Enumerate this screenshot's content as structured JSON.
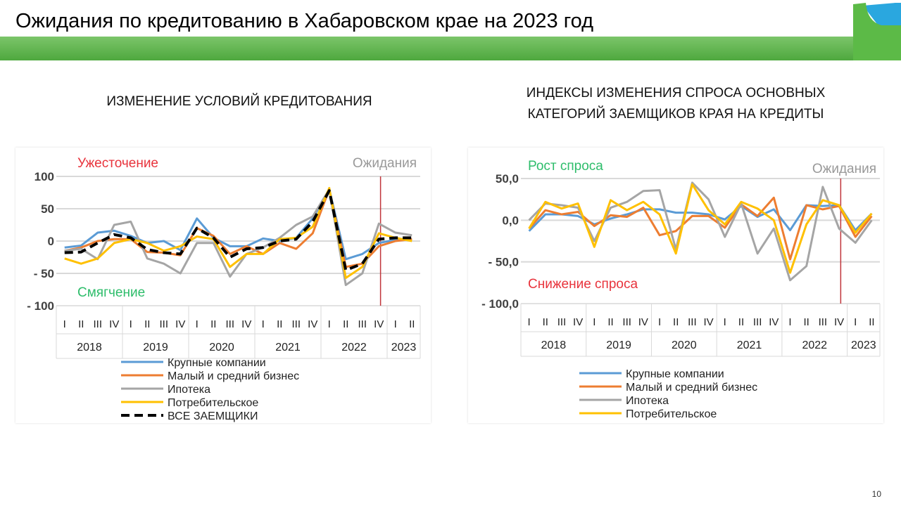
{
  "header": {
    "title": "Ожидания по кредитованию в Хабаровском крае на 2023 год",
    "page": "10"
  },
  "colors": {
    "blue": "#5b9bd5",
    "orange": "#ed7d31",
    "gray": "#a5a5a5",
    "yellow": "#ffc000",
    "black": "#000000",
    "red": "#e8333c",
    "green": "#2ebd6b",
    "band": "#55ad45"
  },
  "chart_data": [
    {
      "type": "line",
      "title": "ИЗМЕНЕНИЕ УСЛОВИЙ КРЕДИТОВАНИЯ",
      "ylim": [
        -100,
        100
      ],
      "yticks": [
        "100",
        "50",
        "0",
        "- 50",
        "- 100"
      ],
      "ytick_values": [
        100,
        50,
        0,
        -50,
        -100
      ],
      "annot_top": "Ужесточение",
      "annot_bottom": "Смягчение",
      "expect": "Ожидания",
      "quarters": [
        "I",
        "II",
        "III",
        "IV",
        "I",
        "II",
        "III",
        "IV",
        "I",
        "II",
        "III",
        "IV",
        "I",
        "II",
        "III",
        "IV",
        "I",
        "II",
        "III",
        "IV",
        "I",
        "II"
      ],
      "years": [
        "2018",
        "2019",
        "2020",
        "2021",
        "2022",
        "2023"
      ],
      "series": [
        {
          "name": "Крупные компании",
          "color": "#5b9bd5",
          "dash": false,
          "values": [
            -10,
            -7,
            13,
            16,
            8,
            -3,
            0,
            -14,
            35,
            5,
            -8,
            -8,
            4,
            0,
            5,
            35,
            80,
            -28,
            -20,
            -3,
            2,
            3
          ]
        },
        {
          "name": "Малый и средний бизнес",
          "color": "#ed7d31",
          "dash": false,
          "values": [
            -15,
            -10,
            0,
            3,
            3,
            -17,
            -18,
            -22,
            20,
            8,
            -20,
            -8,
            -20,
            -3,
            -12,
            12,
            80,
            -40,
            -35,
            -8,
            0,
            3
          ]
        },
        {
          "name": "Ипотека",
          "color": "#a5a5a5",
          "dash": false,
          "values": [
            -15,
            -12,
            -28,
            25,
            30,
            -27,
            -35,
            -50,
            -3,
            -3,
            -55,
            -20,
            -10,
            5,
            25,
            38,
            80,
            -68,
            -50,
            27,
            13,
            9
          ]
        },
        {
          "name": "Потребительское",
          "color": "#ffc000",
          "dash": false,
          "values": [
            -27,
            -35,
            -27,
            -3,
            3,
            -3,
            -15,
            -8,
            7,
            3,
            -40,
            -20,
            -20,
            3,
            5,
            22,
            82,
            -57,
            -40,
            12,
            5,
            0
          ]
        },
        {
          "name": "ВСЕ ЗАЕМЩИКИ",
          "color": "#000000",
          "dash": true,
          "values": [
            -18,
            -17,
            -3,
            10,
            5,
            -13,
            -18,
            -20,
            20,
            5,
            -25,
            -12,
            -10,
            0,
            3,
            30,
            78,
            -45,
            -35,
            3,
            5,
            5
          ]
        }
      ]
    },
    {
      "type": "line",
      "title": "ИНДЕКСЫ ИЗМЕНЕНИЯ СПРОСА ОСНОВНЫХ КАТЕГОРИЙ ЗАЕМЩИКОВ КРАЯ НА КРЕДИТЫ",
      "title_lines": [
        "ИНДЕКСЫ ИЗМЕНЕНИЯ СПРОСА ОСНОВНЫХ",
        "КАТЕГОРИЙ ЗАЕМЩИКОВ КРАЯ НА КРЕДИТЫ"
      ],
      "ylim": [
        -100,
        50
      ],
      "yticks": [
        "50,0",
        "0,0",
        "- 50,0",
        "- 100,0"
      ],
      "ytick_values": [
        50,
        0,
        -50,
        -100
      ],
      "annot_top": "Рост спроса",
      "annot_bottom": "Снижение спроса",
      "expect": "Ожидания",
      "quarters": [
        "I",
        "II",
        "III",
        "IV",
        "I",
        "II",
        "III",
        "IV",
        "I",
        "II",
        "III",
        "IV",
        "I",
        "II",
        "III",
        "IV",
        "I",
        "II",
        "III",
        "IV",
        "I",
        "II"
      ],
      "years": [
        "2018",
        "2019",
        "2020",
        "2021",
        "2022",
        "2023"
      ],
      "series": [
        {
          "name": "Крупные компании",
          "color": "#5b9bd5",
          "dash": false,
          "values": [
            -13,
            7,
            7,
            5,
            -5,
            2,
            7,
            13,
            13,
            9,
            9,
            7,
            1,
            17,
            4,
            13,
            -12,
            18,
            17,
            18,
            -12,
            8
          ]
        },
        {
          "name": "Малый и средний бизнес",
          "color": "#ed7d31",
          "dash": false,
          "values": [
            -10,
            12,
            7,
            10,
            -7,
            6,
            4,
            15,
            -18,
            -13,
            5,
            5,
            -9,
            19,
            5,
            27,
            -47,
            18,
            13,
            17,
            -20,
            5
          ]
        },
        {
          "name": "Ипотека",
          "color": "#a5a5a5",
          "dash": false,
          "values": [
            0,
            20,
            18,
            15,
            -25,
            15,
            22,
            35,
            36,
            -35,
            45,
            25,
            -20,
            20,
            -40,
            -10,
            -72,
            -55,
            40,
            -10,
            -27,
            0
          ]
        },
        {
          "name": "Потребительское",
          "color": "#ffc000",
          "dash": false,
          "values": [
            -10,
            22,
            14,
            20,
            -32,
            24,
            12,
            22,
            7,
            -40,
            43,
            12,
            -5,
            22,
            14,
            0,
            -63,
            -5,
            24,
            18,
            -15,
            8
          ]
        }
      ]
    }
  ]
}
